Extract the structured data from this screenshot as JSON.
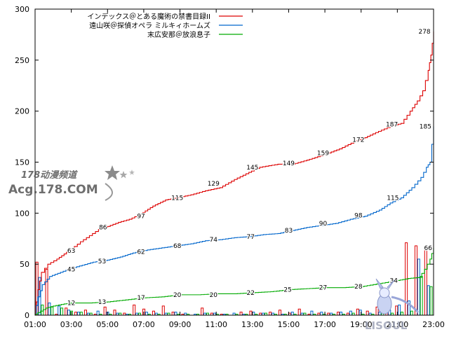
{
  "chart_data": {
    "type": "line",
    "x_ticks": [
      "01:00",
      "03:00",
      "05:00",
      "07:00",
      "09:00",
      "11:00",
      "13:00",
      "15:00",
      "17:00",
      "19:00",
      "21:00",
      "23:00"
    ],
    "y_ticks": [
      0,
      50,
      100,
      150,
      200,
      250,
      300
    ],
    "ylim": [
      0,
      300
    ],
    "xlim": [
      1,
      23
    ],
    "grid": false,
    "legend_position": "top-right",
    "series": [
      {
        "name": "インデックス＠とある魔術の禁書目録II",
        "color": "#dd0000",
        "cumulative": [
          [
            1.0,
            1
          ],
          [
            1.15,
            25
          ],
          [
            1.35,
            42
          ],
          [
            1.7,
            50
          ],
          [
            2.2,
            55
          ],
          [
            2.6,
            60
          ],
          [
            3.0,
            65
          ],
          [
            3.5,
            72
          ],
          [
            4.0,
            78
          ],
          [
            4.5,
            84
          ],
          [
            5.0,
            87
          ],
          [
            5.6,
            91
          ],
          [
            6.2,
            94
          ],
          [
            6.8,
            99
          ],
          [
            7.5,
            107
          ],
          [
            8.2,
            113
          ],
          [
            8.8,
            115
          ],
          [
            9.6,
            118
          ],
          [
            10.4,
            122
          ],
          [
            11.2,
            125
          ],
          [
            12.0,
            133
          ],
          [
            12.8,
            140
          ],
          [
            13.4,
            145
          ],
          [
            14.4,
            148
          ],
          [
            15.2,
            148
          ],
          [
            16.0,
            152
          ],
          [
            16.9,
            157
          ],
          [
            17.8,
            163
          ],
          [
            18.6,
            170
          ],
          [
            19.2,
            174
          ],
          [
            19.8,
            179
          ],
          [
            20.6,
            185
          ],
          [
            21.2,
            188
          ],
          [
            21.7,
            200
          ],
          [
            22.1,
            210
          ],
          [
            22.4,
            220
          ],
          [
            22.7,
            240
          ],
          [
            22.85,
            255
          ],
          [
            23.0,
            278
          ]
        ],
        "labels": [
          {
            "x": 3.0,
            "y": 63,
            "text": "63"
          },
          {
            "x": 4.75,
            "y": 86,
            "text": "86"
          },
          {
            "x": 6.85,
            "y": 97,
            "text": "97"
          },
          {
            "x": 8.85,
            "y": 115,
            "text": "115"
          },
          {
            "x": 10.85,
            "y": 129,
            "text": "129"
          },
          {
            "x": 13.0,
            "y": 145,
            "text": "145"
          },
          {
            "x": 15.0,
            "y": 149,
            "text": "149"
          },
          {
            "x": 16.9,
            "y": 159,
            "text": "159"
          },
          {
            "x": 18.85,
            "y": 172,
            "text": "172"
          },
          {
            "x": 20.7,
            "y": 187,
            "text": "187"
          },
          {
            "x": 22.5,
            "y": 278,
            "text": "278"
          }
        ],
        "hourly": [
          52,
          45,
          1,
          7,
          3,
          5,
          1,
          8,
          5,
          2,
          10,
          6,
          4,
          9,
          3,
          1,
          0,
          7,
          2,
          1,
          0,
          3,
          4,
          2,
          3,
          5,
          2,
          6,
          1,
          2,
          2,
          3,
          2,
          6,
          4,
          8,
          3,
          9,
          71,
          68,
          66
        ]
      },
      {
        "name": "遠山咲＠探偵オペラ ミルキィホームズ",
        "color": "#0066cc",
        "cumulative": [
          [
            1.0,
            1
          ],
          [
            1.15,
            18
          ],
          [
            1.4,
            30
          ],
          [
            1.8,
            38
          ],
          [
            2.4,
            42
          ],
          [
            3.0,
            46
          ],
          [
            3.6,
            49
          ],
          [
            4.2,
            52
          ],
          [
            5.0,
            54
          ],
          [
            5.7,
            57
          ],
          [
            6.4,
            61
          ],
          [
            7.2,
            64
          ],
          [
            8.0,
            66
          ],
          [
            8.8,
            68
          ],
          [
            9.6,
            70
          ],
          [
            10.4,
            73
          ],
          [
            11.2,
            74
          ],
          [
            12.0,
            76
          ],
          [
            12.8,
            77
          ],
          [
            13.6,
            79
          ],
          [
            14.4,
            80
          ],
          [
            15.2,
            83
          ],
          [
            16.0,
            86
          ],
          [
            16.8,
            88
          ],
          [
            17.6,
            90
          ],
          [
            18.4,
            94
          ],
          [
            19.2,
            97
          ],
          [
            20.0,
            103
          ],
          [
            20.6,
            110
          ],
          [
            21.2,
            115
          ],
          [
            21.8,
            125
          ],
          [
            22.3,
            135
          ],
          [
            22.6,
            145
          ],
          [
            22.8,
            150
          ],
          [
            23.0,
            185
          ]
        ],
        "labels": [
          {
            "x": 3.0,
            "y": 45,
            "text": "45"
          },
          {
            "x": 4.7,
            "y": 53,
            "text": "53"
          },
          {
            "x": 6.85,
            "y": 62,
            "text": "62"
          },
          {
            "x": 8.85,
            "y": 68,
            "text": "68"
          },
          {
            "x": 10.85,
            "y": 74,
            "text": "74"
          },
          {
            "x": 12.9,
            "y": 77,
            "text": "77"
          },
          {
            "x": 15.0,
            "y": 83,
            "text": "83"
          },
          {
            "x": 16.9,
            "y": 90,
            "text": "90"
          },
          {
            "x": 18.85,
            "y": 98,
            "text": "98"
          },
          {
            "x": 20.75,
            "y": 115,
            "text": "115"
          },
          {
            "x": 22.55,
            "y": 185,
            "text": "185"
          }
        ],
        "hourly": [
          37,
          12,
          9,
          5,
          3,
          2,
          4,
          3,
          2,
          1,
          2,
          3,
          2,
          2,
          3,
          2,
          1,
          2,
          2,
          1,
          2,
          1,
          3,
          2,
          2,
          1,
          3,
          2,
          4,
          3,
          2,
          3,
          4,
          5,
          2,
          3,
          5,
          10,
          14,
          55,
          29
        ]
      },
      {
        "name": "末広安那＠放浪息子",
        "color": "#00aa00",
        "cumulative": [
          [
            1.0,
            1
          ],
          [
            1.3,
            4
          ],
          [
            1.6,
            7
          ],
          [
            2.0,
            9
          ],
          [
            2.6,
            11
          ],
          [
            3.0,
            12
          ],
          [
            4.0,
            12
          ],
          [
            5.0,
            13
          ],
          [
            6.0,
            15
          ],
          [
            7.0,
            17
          ],
          [
            8.0,
            18
          ],
          [
            9.0,
            20
          ],
          [
            10.0,
            20
          ],
          [
            11.0,
            21
          ],
          [
            12.0,
            21
          ],
          [
            13.0,
            22
          ],
          [
            14.0,
            23
          ],
          [
            15.0,
            25
          ],
          [
            16.0,
            26
          ],
          [
            17.0,
            27
          ],
          [
            18.0,
            27
          ],
          [
            19.0,
            28
          ],
          [
            20.0,
            31
          ],
          [
            21.0,
            34
          ],
          [
            21.6,
            36
          ],
          [
            22.2,
            37
          ],
          [
            22.5,
            45
          ],
          [
            22.8,
            55
          ],
          [
            23.0,
            66
          ]
        ],
        "labels": [
          {
            "x": 3.0,
            "y": 12,
            "text": "12"
          },
          {
            "x": 4.7,
            "y": 13,
            "text": "13"
          },
          {
            "x": 6.85,
            "y": 17,
            "text": "17"
          },
          {
            "x": 8.85,
            "y": 20,
            "text": "20"
          },
          {
            "x": 10.85,
            "y": 20,
            "text": "20"
          },
          {
            "x": 12.9,
            "y": 22,
            "text": "22"
          },
          {
            "x": 14.95,
            "y": 25,
            "text": "25"
          },
          {
            "x": 16.9,
            "y": 27,
            "text": "27"
          },
          {
            "x": 18.85,
            "y": 28,
            "text": "28"
          },
          {
            "x": 20.8,
            "y": 34,
            "text": "34"
          },
          {
            "x": 22.7,
            "y": 66,
            "text": "66"
          }
        ],
        "hourly": [
          10,
          8,
          7,
          4,
          3,
          2,
          1,
          1,
          2,
          1,
          2,
          1,
          1,
          2,
          1,
          1,
          1,
          2,
          1,
          1,
          1,
          1,
          1,
          2,
          1,
          1,
          1,
          2,
          1,
          1,
          1,
          1,
          2,
          1,
          1,
          3,
          2,
          3,
          4,
          38,
          28
        ]
      }
    ]
  },
  "watermark": {
    "site_cn": "178动漫频道",
    "site_url": "Acg.178.COM",
    "corner": "LISOUL"
  }
}
